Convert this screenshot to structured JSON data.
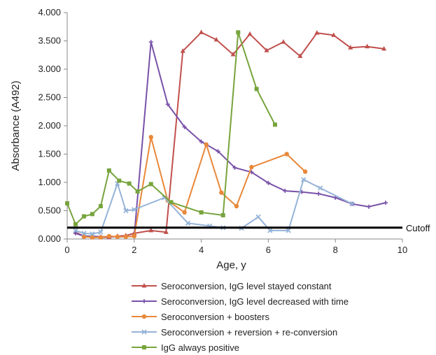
{
  "chart_data": {
    "type": "line",
    "title": "",
    "xlabel": "Age, y",
    "ylabel": "Absorbance (A492)",
    "xlim": [
      0,
      10
    ],
    "ylim": [
      0,
      4
    ],
    "xticks": [
      0,
      2,
      4,
      6,
      8,
      10
    ],
    "xtick_labels": [
      "0",
      "2",
      "4",
      "6",
      "8",
      "10"
    ],
    "yticks": [
      0,
      0.5,
      1,
      1.5,
      2,
      2.5,
      3,
      3.5,
      4
    ],
    "ytick_labels": [
      "0.000",
      "0.500",
      "1.000",
      "1.500",
      "2.000",
      "2.500",
      "3.000",
      "3.500",
      "4.000"
    ],
    "grid": false,
    "legend_position": "bottom",
    "cutoff": {
      "value": 0.2,
      "label": "Cutoff",
      "color": "#000000"
    },
    "series": [
      {
        "name": "Seroconversion, IgG level stayed constant",
        "color": "#c0504d",
        "marker": "triangle",
        "points": [
          [
            0.25,
            0.12
          ],
          [
            0.5,
            0.05
          ],
          [
            0.75,
            0.03
          ],
          [
            1.0,
            0.03
          ],
          [
            1.25,
            0.03
          ],
          [
            1.5,
            0.05
          ],
          [
            1.75,
            0.06
          ],
          [
            2.0,
            0.1
          ],
          [
            2.5,
            0.15
          ],
          [
            2.95,
            0.12
          ],
          [
            3.45,
            3.32
          ],
          [
            4.0,
            3.65
          ],
          [
            4.45,
            3.52
          ],
          [
            4.95,
            3.26
          ],
          [
            5.45,
            3.62
          ],
          [
            5.95,
            3.33
          ],
          [
            6.45,
            3.48
          ],
          [
            6.95,
            3.23
          ],
          [
            7.45,
            3.64
          ],
          [
            7.95,
            3.6
          ],
          [
            8.45,
            3.38
          ],
          [
            8.95,
            3.4
          ],
          [
            9.45,
            3.36
          ]
        ]
      },
      {
        "name": "Seroconversion, IgG level decreased with time",
        "color": "#7851a9",
        "marker": "plus",
        "points": [
          [
            0.25,
            0.1
          ],
          [
            0.5,
            0.05
          ],
          [
            0.75,
            0.05
          ],
          [
            1.0,
            0.04
          ],
          [
            1.25,
            0.04
          ],
          [
            1.5,
            0.04
          ],
          [
            1.75,
            0.04
          ],
          [
            2.0,
            0.05
          ],
          [
            2.5,
            3.48
          ],
          [
            3.0,
            2.38
          ],
          [
            3.5,
            1.98
          ],
          [
            4.0,
            1.72
          ],
          [
            4.5,
            1.55
          ],
          [
            5.0,
            1.26
          ],
          [
            5.5,
            1.18
          ],
          [
            6.0,
            0.99
          ],
          [
            6.5,
            0.85
          ],
          [
            7.0,
            0.83
          ],
          [
            7.5,
            0.8
          ],
          [
            8.0,
            0.73
          ],
          [
            8.5,
            0.62
          ],
          [
            9.0,
            0.57
          ],
          [
            9.5,
            0.64
          ]
        ]
      },
      {
        "name": "Seroconversion + boosters",
        "color": "#e8883a",
        "marker": "circle",
        "points": [
          [
            0.5,
            0.04
          ],
          [
            0.75,
            0.03
          ],
          [
            1.0,
            0.03
          ],
          [
            1.25,
            0.05
          ],
          [
            1.5,
            0.04
          ],
          [
            1.75,
            0.04
          ],
          [
            2.0,
            0.05
          ],
          [
            2.5,
            1.8
          ],
          [
            3.0,
            0.68
          ],
          [
            3.5,
            0.47
          ],
          [
            4.15,
            1.67
          ],
          [
            4.6,
            0.82
          ],
          [
            5.05,
            0.58
          ],
          [
            5.5,
            1.27
          ],
          [
            6.55,
            1.5
          ],
          [
            7.1,
            1.19
          ]
        ]
      },
      {
        "name": "Seroconversion + reversion + re-conversion",
        "color": "#95b3d7",
        "marker": "x",
        "points": [
          [
            0.25,
            0.15
          ],
          [
            0.5,
            0.1
          ],
          [
            0.75,
            0.09
          ],
          [
            1.0,
            0.12
          ],
          [
            1.5,
            0.98
          ],
          [
            1.75,
            0.5
          ],
          [
            2.0,
            0.52
          ],
          [
            2.9,
            0.73
          ],
          [
            3.6,
            0.28
          ],
          [
            4.25,
            0.23
          ],
          [
            4.65,
            0.2
          ],
          [
            5.2,
            0.19
          ],
          [
            5.7,
            0.39
          ],
          [
            6.05,
            0.15
          ],
          [
            6.6,
            0.15
          ],
          [
            7.05,
            1.05
          ],
          [
            7.55,
            0.9
          ],
          [
            8.5,
            0.62
          ]
        ]
      },
      {
        "name": "IgG always positive",
        "color": "#77a43d",
        "marker": "square",
        "points": [
          [
            0.0,
            0.63
          ],
          [
            0.25,
            0.26
          ],
          [
            0.5,
            0.4
          ],
          [
            0.75,
            0.44
          ],
          [
            1.0,
            0.58
          ],
          [
            1.25,
            1.21
          ],
          [
            1.55,
            1.03
          ],
          [
            1.85,
            0.98
          ],
          [
            2.1,
            0.84
          ],
          [
            2.5,
            0.97
          ],
          [
            3.1,
            0.65
          ],
          [
            4.0,
            0.47
          ],
          [
            4.65,
            0.42
          ],
          [
            5.1,
            3.65
          ],
          [
            5.65,
            2.65
          ],
          [
            6.2,
            2.02
          ]
        ]
      }
    ]
  }
}
